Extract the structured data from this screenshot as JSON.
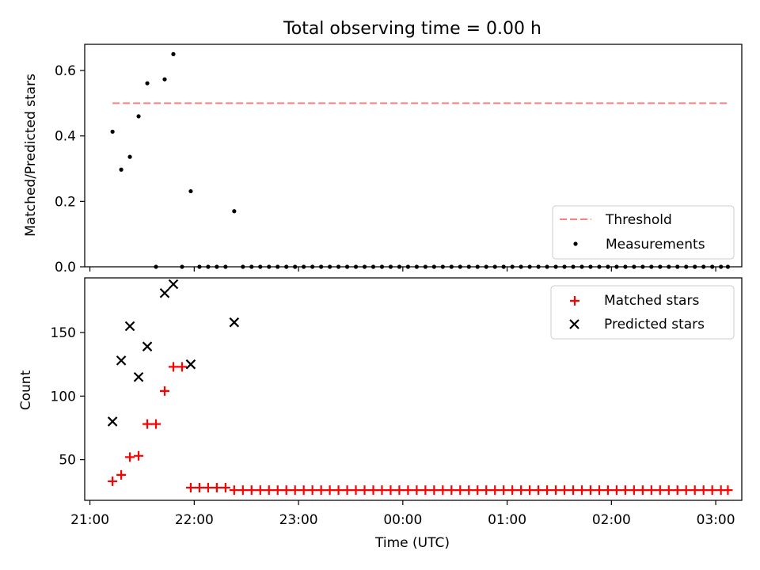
{
  "title": "Total observing time = 0.00 h",
  "colors": {
    "threshold": "#ff7f7f",
    "measurement": "#000000",
    "matched": "#ff0000",
    "predicted": "#000000"
  },
  "chart_data": [
    {
      "type": "scatter",
      "ylabel": "Matched/Predicted stars",
      "xlabel": "",
      "ylim": [
        0,
        0.68
      ],
      "yticks": [
        "0.0",
        "0.2",
        "0.4",
        "0.6"
      ],
      "xticks": [
        "21:00",
        "22:00",
        "23:00",
        "00:00",
        "01:00",
        "02:00",
        "03:00"
      ],
      "xlim": [
        "20:57",
        "03:15"
      ],
      "legend": {
        "position": "bottom-right",
        "entries": [
          "Threshold",
          "Measurements"
        ]
      },
      "threshold": {
        "name": "Threshold",
        "value": 0.5,
        "x": [
          "21:13",
          "03:07"
        ]
      },
      "series": [
        {
          "name": "Measurements",
          "marker": "dot",
          "points": [
            [
              "21:13",
              0.413
            ],
            [
              "21:18",
              0.297
            ],
            [
              "21:23",
              0.336
            ],
            [
              "21:28",
              0.46
            ],
            [
              "21:33",
              0.561
            ],
            [
              "21:38",
              0.0
            ],
            [
              "21:43",
              0.573
            ],
            [
              "21:48",
              0.65
            ],
            [
              "21:53",
              0.0
            ],
            [
              "21:58",
              0.231
            ],
            [
              "22:03",
              0.0
            ],
            [
              "22:08",
              0.0
            ],
            [
              "22:13",
              0.0
            ],
            [
              "22:18",
              0.0
            ],
            [
              "22:23",
              0.17
            ],
            [
              "22:28",
              0.0
            ],
            [
              "22:33",
              0.0
            ],
            [
              "22:38",
              0.0
            ],
            [
              "22:43",
              0.0
            ],
            [
              "22:48",
              0.0
            ],
            [
              "22:53",
              0.0
            ],
            [
              "22:58",
              0.0
            ],
            [
              "23:03",
              0.0
            ],
            [
              "23:08",
              0.0
            ],
            [
              "23:13",
              0.0
            ],
            [
              "23:18",
              0.0
            ],
            [
              "23:23",
              0.0
            ],
            [
              "23:28",
              0.0
            ],
            [
              "23:33",
              0.0
            ],
            [
              "23:38",
              0.0
            ],
            [
              "23:43",
              0.0
            ],
            [
              "23:48",
              0.0
            ],
            [
              "23:53",
              0.0
            ],
            [
              "23:58",
              0.0
            ],
            [
              "00:03",
              0.0
            ],
            [
              "00:08",
              0.0
            ],
            [
              "00:13",
              0.0
            ],
            [
              "00:18",
              0.0
            ],
            [
              "00:23",
              0.0
            ],
            [
              "00:28",
              0.0
            ],
            [
              "00:33",
              0.0
            ],
            [
              "00:38",
              0.0
            ],
            [
              "00:43",
              0.0
            ],
            [
              "00:48",
              0.0
            ],
            [
              "00:53",
              0.0
            ],
            [
              "00:58",
              0.0
            ],
            [
              "01:03",
              0.0
            ],
            [
              "01:08",
              0.0
            ],
            [
              "01:13",
              0.0
            ],
            [
              "01:18",
              0.0
            ],
            [
              "01:23",
              0.0
            ],
            [
              "01:28",
              0.0
            ],
            [
              "01:33",
              0.0
            ],
            [
              "01:38",
              0.0
            ],
            [
              "01:43",
              0.0
            ],
            [
              "01:48",
              0.0
            ],
            [
              "01:53",
              0.0
            ],
            [
              "01:58",
              0.0
            ],
            [
              "02:03",
              0.0
            ],
            [
              "02:08",
              0.0
            ],
            [
              "02:13",
              0.0
            ],
            [
              "02:18",
              0.0
            ],
            [
              "02:23",
              0.0
            ],
            [
              "02:28",
              0.0
            ],
            [
              "02:33",
              0.0
            ],
            [
              "02:38",
              0.0
            ],
            [
              "02:43",
              0.0
            ],
            [
              "02:48",
              0.0
            ],
            [
              "02:53",
              0.0
            ],
            [
              "02:58",
              0.0
            ],
            [
              "03:03",
              0.0
            ],
            [
              "03:07",
              0.0
            ]
          ]
        }
      ]
    },
    {
      "type": "scatter",
      "ylabel": "Count",
      "xlabel": "Time (UTC)",
      "ylim": [
        18,
        193
      ],
      "yticks": [
        "50",
        "100",
        "150"
      ],
      "xticks": [
        "21:00",
        "22:00",
        "23:00",
        "00:00",
        "01:00",
        "02:00",
        "03:00"
      ],
      "xlim": [
        "20:57",
        "03:15"
      ],
      "legend": {
        "position": "top-right",
        "entries": [
          "Matched stars",
          "Predicted stars"
        ]
      },
      "series": [
        {
          "name": "Matched stars",
          "marker": "plus",
          "points": [
            [
              "21:13",
              33
            ],
            [
              "21:18",
              38
            ],
            [
              "21:23",
              52
            ],
            [
              "21:28",
              53
            ],
            [
              "21:33",
              78
            ],
            [
              "21:38",
              78
            ],
            [
              "21:43",
              104
            ],
            [
              "21:48",
              123
            ],
            [
              "21:53",
              123
            ],
            [
              "21:58",
              28
            ],
            [
              "22:03",
              28
            ],
            [
              "22:08",
              28
            ],
            [
              "22:13",
              28
            ],
            [
              "22:18",
              28
            ],
            [
              "22:23",
              26
            ],
            [
              "22:28",
              26
            ],
            [
              "22:33",
              26
            ],
            [
              "22:38",
              26
            ],
            [
              "22:43",
              26
            ],
            [
              "22:48",
              26
            ],
            [
              "22:53",
              26
            ],
            [
              "22:58",
              26
            ],
            [
              "23:03",
              26
            ],
            [
              "23:08",
              26
            ],
            [
              "23:13",
              26
            ],
            [
              "23:18",
              26
            ],
            [
              "23:23",
              26
            ],
            [
              "23:28",
              26
            ],
            [
              "23:33",
              26
            ],
            [
              "23:38",
              26
            ],
            [
              "23:43",
              26
            ],
            [
              "23:48",
              26
            ],
            [
              "23:53",
              26
            ],
            [
              "23:58",
              26
            ],
            [
              "00:03",
              26
            ],
            [
              "00:08",
              26
            ],
            [
              "00:13",
              26
            ],
            [
              "00:18",
              26
            ],
            [
              "00:23",
              26
            ],
            [
              "00:28",
              26
            ],
            [
              "00:33",
              26
            ],
            [
              "00:38",
              26
            ],
            [
              "00:43",
              26
            ],
            [
              "00:48",
              26
            ],
            [
              "00:53",
              26
            ],
            [
              "00:58",
              26
            ],
            [
              "01:03",
              26
            ],
            [
              "01:08",
              26
            ],
            [
              "01:13",
              26
            ],
            [
              "01:18",
              26
            ],
            [
              "01:23",
              26
            ],
            [
              "01:28",
              26
            ],
            [
              "01:33",
              26
            ],
            [
              "01:38",
              26
            ],
            [
              "01:43",
              26
            ],
            [
              "01:48",
              26
            ],
            [
              "01:53",
              26
            ],
            [
              "01:58",
              26
            ],
            [
              "02:03",
              26
            ],
            [
              "02:08",
              26
            ],
            [
              "02:13",
              26
            ],
            [
              "02:18",
              26
            ],
            [
              "02:23",
              26
            ],
            [
              "02:28",
              26
            ],
            [
              "02:33",
              26
            ],
            [
              "02:38",
              26
            ],
            [
              "02:43",
              26
            ],
            [
              "02:48",
              26
            ],
            [
              "02:53",
              26
            ],
            [
              "02:58",
              26
            ],
            [
              "03:03",
              26
            ],
            [
              "03:07",
              26
            ]
          ]
        },
        {
          "name": "Predicted stars",
          "marker": "x",
          "points": [
            [
              "21:13",
              80
            ],
            [
              "21:18",
              128
            ],
            [
              "21:23",
              155
            ],
            [
              "21:28",
              115
            ],
            [
              "21:33",
              139
            ],
            [
              "21:43",
              181
            ],
            [
              "21:48",
              188
            ],
            [
              "21:58",
              125
            ],
            [
              "22:23",
              158
            ]
          ]
        }
      ]
    }
  ]
}
